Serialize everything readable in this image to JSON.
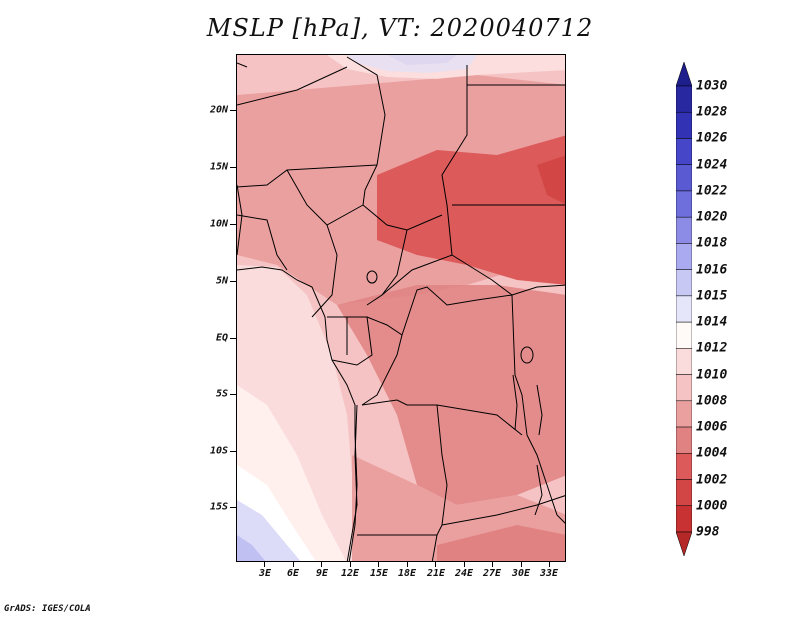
{
  "title": "MSLP [hPa], VT: 2020040712",
  "footer": "GrADS: IGES/COLA",
  "map": {
    "variable": "MSLP",
    "units": "hPa",
    "valid_time": "2020040712",
    "lat_labels": [
      "20N",
      "15N",
      "10N",
      "5N",
      "EQ",
      "5S",
      "10S",
      "15S"
    ],
    "lat_values": [
      20,
      15,
      10,
      5,
      0,
      -5,
      -10,
      -15
    ],
    "lon_labels": [
      "3E",
      "6E",
      "9E",
      "12E",
      "15E",
      "18E",
      "21E",
      "24E",
      "27E",
      "30E",
      "33E"
    ],
    "lon_values": [
      3,
      6,
      9,
      12,
      15,
      18,
      21,
      24,
      27,
      30,
      33
    ],
    "lat_range": [
      -20,
      24.5
    ],
    "lon_range": [
      0,
      34.5
    ]
  },
  "colorbar": {
    "labels": [
      "1030",
      "1028",
      "1026",
      "1024",
      "1022",
      "1020",
      "1018",
      "1016",
      "1015",
      "1014",
      "1012",
      "1010",
      "1008",
      "1006",
      "1004",
      "1002",
      "1000",
      "998"
    ],
    "colors": [
      "#1e1e8c",
      "#2828a0",
      "#3232b4",
      "#4646c8",
      "#5a5ad2",
      "#6e6edc",
      "#8c8ce6",
      "#aaaaf0",
      "#c8c8f5",
      "#e6e6fa",
      "#fffaf8",
      "#fadcdc",
      "#f5c3c3",
      "#eba0a0",
      "#e18282",
      "#dc5a5a",
      "#d24646",
      "#c83232",
      "#b42828"
    ]
  }
}
